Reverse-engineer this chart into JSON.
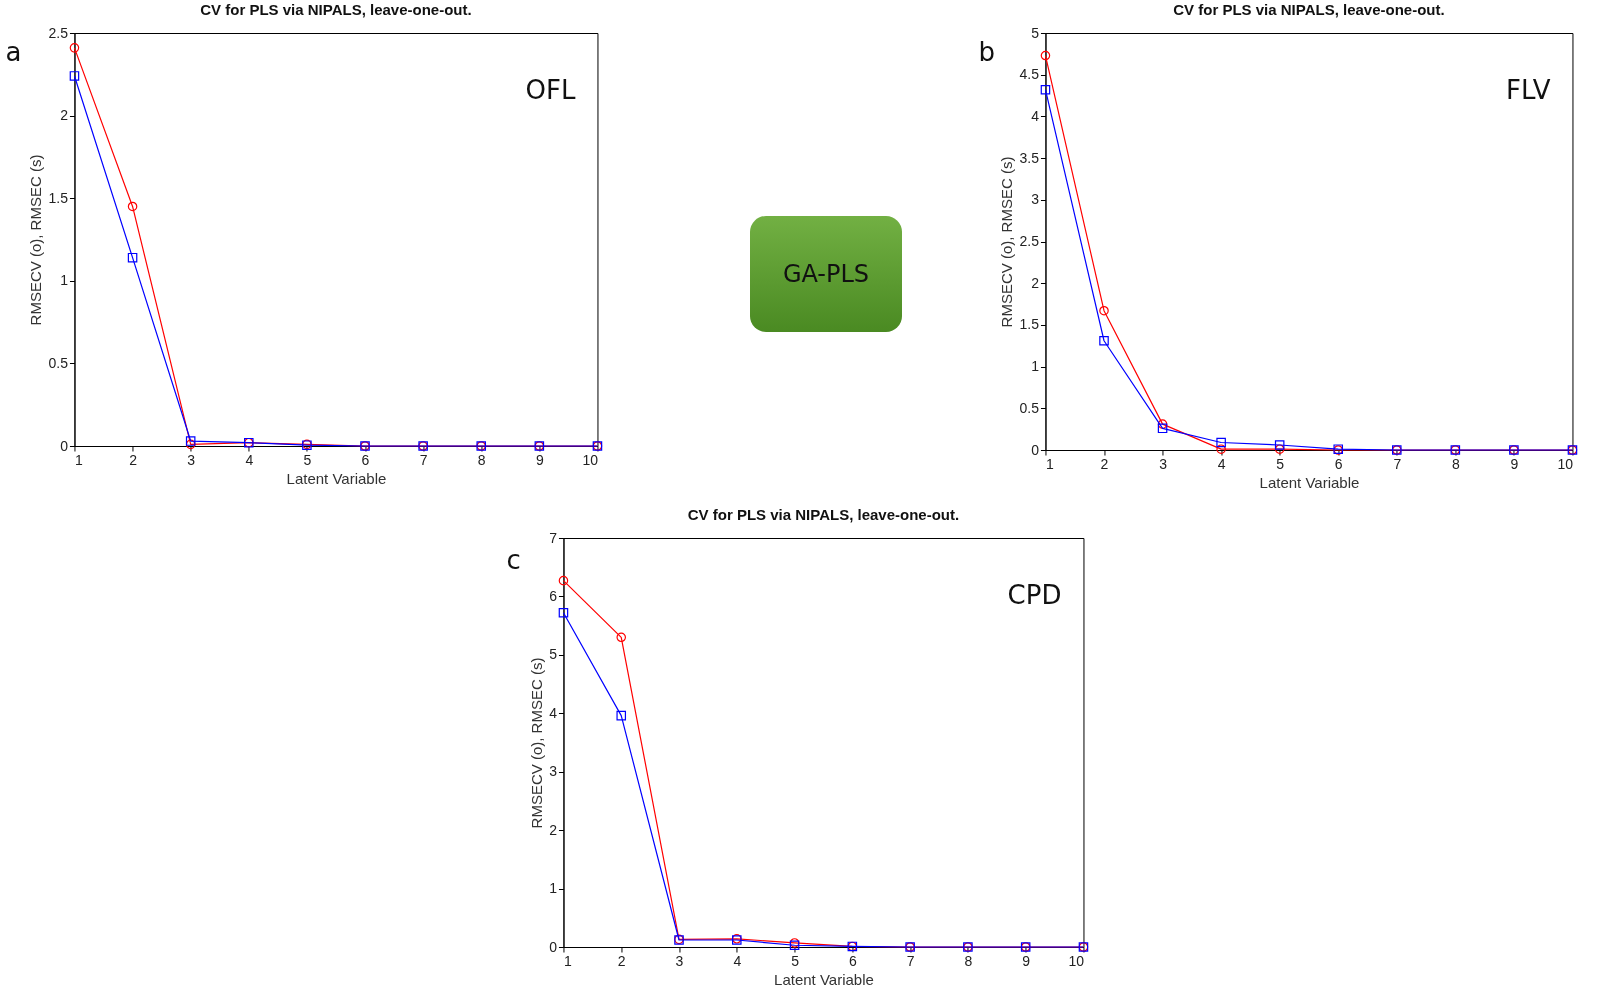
{
  "chart_data": [
    {
      "type": "line",
      "title": "CV for PLS via NIPALS, leave-one-out.",
      "xlabel": "Latent Variable",
      "ylabel": "RMSECV (o), RMSEC (s)",
      "annotations": [
        "a",
        "OFL"
      ],
      "x": [
        1,
        2,
        3,
        4,
        5,
        6,
        7,
        8,
        9,
        10
      ],
      "xlim": [
        1,
        10
      ],
      "xticks": [
        1,
        2,
        3,
        4,
        5,
        6,
        7,
        8,
        9,
        10
      ],
      "ylim": [
        0,
        2.5
      ],
      "yticks": [
        0,
        0.5,
        1,
        1.5,
        2,
        2.5
      ],
      "grid": false,
      "series": [
        {
          "color": "#ff0000",
          "marker": "circle",
          "values": [
            2.41,
            1.45,
            0.01,
            0.02,
            0.01,
            0,
            0,
            0,
            0,
            0
          ]
        },
        {
          "color": "#0000ff",
          "marker": "square",
          "values": [
            2.24,
            1.14,
            0.03,
            0.02,
            0.005,
            0,
            0,
            0,
            0,
            0
          ]
        }
      ]
    },
    {
      "type": "other",
      "title": "GA-PLS"
    },
    {
      "type": "line",
      "title": "CV for PLS via NIPALS, leave-one-out.",
      "xlabel": "Latent Variable",
      "ylabel": "RMSECV (o), RMSEC (s)",
      "annotations": [
        "b",
        "FLV"
      ],
      "x": [
        1,
        2,
        3,
        4,
        5,
        6,
        7,
        8,
        9,
        10
      ],
      "xlim": [
        1,
        10
      ],
      "xticks": [
        1,
        2,
        3,
        4,
        5,
        6,
        7,
        8,
        9,
        10
      ],
      "ylim": [
        0,
        5
      ],
      "yticks": [
        0,
        0.5,
        1,
        1.5,
        2,
        2.5,
        3,
        3.5,
        4,
        4.5,
        5
      ],
      "grid": false,
      "series": [
        {
          "color": "#ff0000",
          "marker": "circle",
          "values": [
            4.73,
            1.67,
            0.31,
            0.01,
            0.01,
            0,
            0,
            0,
            0,
            0
          ]
        },
        {
          "color": "#0000ff",
          "marker": "square",
          "values": [
            4.32,
            1.31,
            0.26,
            0.09,
            0.06,
            0.01,
            0,
            0,
            0,
            0
          ]
        }
      ]
    },
    {
      "type": "line",
      "title": "CV for PLS via NIPALS, leave-one-out.",
      "xlabel": "Latent Variable",
      "ylabel": "RMSECV (o), RMSEC (s)",
      "annotations": [
        "c",
        "CPD"
      ],
      "x": [
        1,
        2,
        3,
        4,
        5,
        6,
        7,
        8,
        9,
        10
      ],
      "xlim": [
        1,
        10
      ],
      "xticks": [
        1,
        2,
        3,
        4,
        5,
        6,
        7,
        8,
        9,
        10
      ],
      "ylim": [
        0,
        7
      ],
      "yticks": [
        0,
        1,
        2,
        3,
        4,
        5,
        6,
        7
      ],
      "grid": false,
      "series": [
        {
          "color": "#ff0000",
          "marker": "circle",
          "values": [
            6.27,
            5.3,
            0.13,
            0.14,
            0.07,
            0.01,
            0,
            0,
            0,
            0
          ]
        },
        {
          "color": "#0000ff",
          "marker": "square",
          "values": [
            5.72,
            3.96,
            0.12,
            0.12,
            0.03,
            0.01,
            0,
            0,
            0,
            0
          ]
        }
      ]
    }
  ]
}
